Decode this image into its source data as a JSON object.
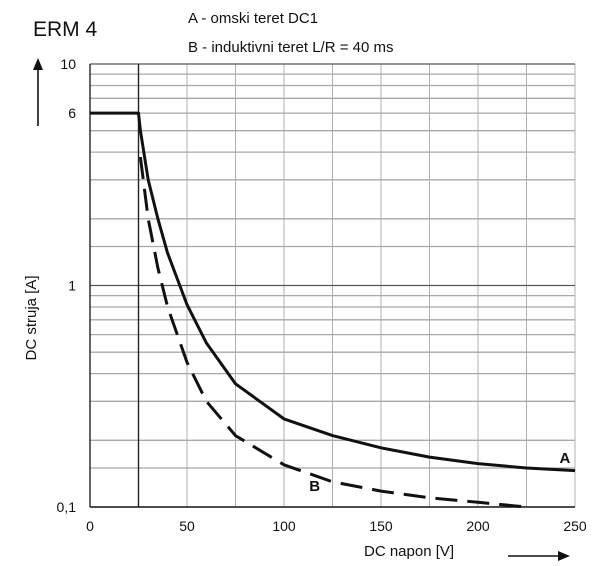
{
  "chart_data": {
    "type": "line",
    "title": "ERM 4",
    "legend": [
      "A - omski teret DC1",
      "B - induktivni teret L/R = 40 ms"
    ],
    "xlabel": "DC napon [V]",
    "ylabel": "DC struja [A]",
    "xlim": [
      0,
      250
    ],
    "ylim": [
      0.1,
      10
    ],
    "yscale": "log",
    "grid": true,
    "x_ticks": [
      0,
      50,
      100,
      150,
      200,
      250
    ],
    "x_tick_labels": [
      "0",
      "50",
      "100",
      "150",
      "200",
      "250"
    ],
    "y_ticks": [
      0.1,
      1,
      6,
      10
    ],
    "y_tick_labels": [
      "0,1",
      "1",
      "6",
      "10"
    ],
    "y_minor_grid": [
      0.15,
      0.2,
      0.3,
      0.4,
      0.5,
      0.6,
      0.7,
      0.8,
      0.9,
      1.5,
      2,
      3,
      4,
      5,
      6,
      7,
      8,
      9
    ],
    "series": [
      {
        "name": "A",
        "style": "solid",
        "x": [
          0,
          25,
          26,
          30,
          35,
          40,
          50,
          60,
          75,
          100,
          125,
          150,
          175,
          200,
          225,
          250
        ],
        "y": [
          6,
          6,
          5.0,
          3.0,
          2.0,
          1.4,
          0.82,
          0.55,
          0.36,
          0.25,
          0.21,
          0.185,
          0.168,
          0.157,
          0.15,
          0.146
        ]
      },
      {
        "name": "B",
        "style": "dashed",
        "x": [
          26,
          30,
          35,
          40,
          50,
          60,
          75,
          100,
          125,
          150,
          175,
          200,
          225
        ],
        "y": [
          3.8,
          2.0,
          1.2,
          0.8,
          0.45,
          0.3,
          0.21,
          0.155,
          0.13,
          0.118,
          0.11,
          0.105,
          0.1
        ]
      }
    ],
    "series_label_positions": [
      {
        "name": "A",
        "x": 242,
        "y": 0.158
      },
      {
        "name": "B",
        "x": 113,
        "y": 0.118
      }
    ]
  }
}
